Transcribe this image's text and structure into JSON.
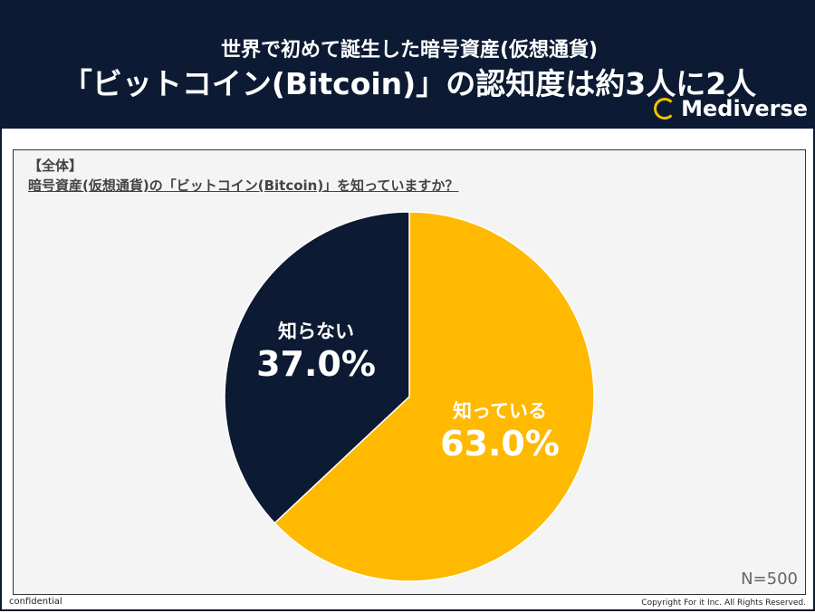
{
  "header": {
    "subtitle": "世界で初めて誕生した暗号資産(仮想通貨)",
    "title": "「ビットコイン(Bitcoin)」の認知度は約3人に2人",
    "logo": "Mediverse"
  },
  "panel": {
    "segment": "【全体】",
    "question": "暗号資産(仮想通貨)の「ビットコイン(Bitcoin)」を知っていますか？",
    "n": "N=500"
  },
  "footer": {
    "left": "confidential",
    "right": "Copyright For it Inc. All Rights Reserved."
  },
  "chart_data": {
    "type": "pie",
    "categories": [
      "知っている",
      "知らない"
    ],
    "values": [
      63.0,
      37.0
    ],
    "labels": [
      "63.0%",
      "37.0%"
    ],
    "colors": [
      "#ffb900",
      "#0c1a33"
    ],
    "start": "top, clockwise"
  }
}
